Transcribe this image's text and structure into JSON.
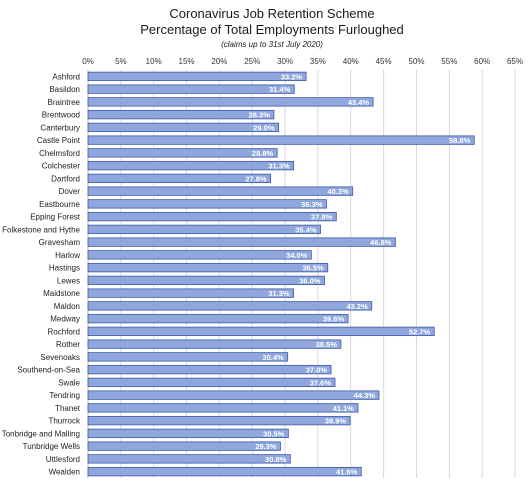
{
  "chart_data": {
    "type": "bar",
    "orientation": "horizontal",
    "title": "Coronavirus Job Retention Scheme",
    "subtitle": "Percentage of Total Employments Furloughed",
    "note": "(claims up to 31st July 2020)",
    "categories": [
      "Ashford",
      "Basildon",
      "Braintree",
      "Brentwood",
      "Canterbury",
      "Castle Point",
      "Chelmsford",
      "Colchester",
      "Dartford",
      "Dover",
      "Eastbourne",
      "Epping Forest",
      "Folkestone and Hythe",
      "Gravesham",
      "Harlow",
      "Hastings",
      "Lewes",
      "Maidstone",
      "Maldon",
      "Medway",
      "Rochford",
      "Rother",
      "Sevenoaks",
      "Southend-on-Sea",
      "Swale",
      "Tendring",
      "Thanet",
      "Thurrock",
      "Tonbridge and Malling",
      "Tunbridge Wells",
      "Uttlesford",
      "Wealden"
    ],
    "values": [
      33.2,
      31.4,
      43.4,
      28.3,
      29.0,
      58.8,
      28.8,
      31.3,
      27.8,
      40.3,
      36.3,
      37.8,
      35.4,
      46.8,
      34.0,
      36.5,
      36.0,
      31.3,
      43.2,
      39.6,
      52.7,
      38.5,
      30.4,
      37.0,
      37.6,
      44.3,
      41.1,
      39.9,
      30.5,
      29.3,
      30.8,
      41.6
    ],
    "value_labels": [
      "33.2%",
      "31.4%",
      "43.4%",
      "28.3%",
      "29.0%",
      "58.8%",
      "28.8%",
      "31.3%",
      "27.8%",
      "40.3%",
      "36.3%",
      "37.8%",
      "35.4%",
      "46.8%",
      "34.0%",
      "36.5%",
      "36.0%",
      "31.3%",
      "43.2%",
      "39.6%",
      "52.7%",
      "38.5%",
      "30.4%",
      "37.0%",
      "37.6%",
      "44.3%",
      "41.1%",
      "39.9%",
      "30.5%",
      "29.3%",
      "30.8%",
      "41.6%"
    ],
    "x_ticks": [
      "0%",
      "5%",
      "10%",
      "15%",
      "20%",
      "25%",
      "30%",
      "35%",
      "40%",
      "45%",
      "50%",
      "55%",
      "60%",
      "65%"
    ],
    "xlim": [
      0,
      65
    ],
    "x_axis_position": "top",
    "grid": true,
    "legend": "none",
    "bar_color": "#8fa7dc",
    "bar_border_color": "#3f5aa8",
    "grid_color": "#d9d9d9"
  }
}
